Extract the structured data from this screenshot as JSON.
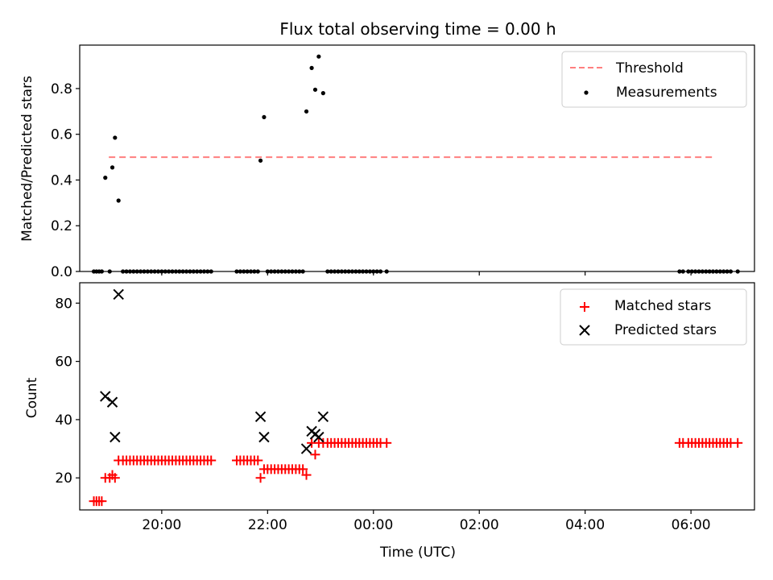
{
  "figure": {
    "title": "Flux total observing time = 0.00 h"
  },
  "chart_data": [
    {
      "type": "scatter",
      "ylabel": "Matched/Predicted stars",
      "xlabel": "",
      "xlim": [
        18.45,
        7.2
      ],
      "ylim": [
        0.0,
        0.99
      ],
      "yticks": [
        0.0,
        0.2,
        0.4,
        0.6,
        0.8
      ],
      "ytick_labels": [
        "0.0",
        "0.2",
        "0.4",
        "0.6",
        "0.8"
      ],
      "grid": false,
      "legend_position": "upper right",
      "threshold": {
        "name": "Threshold",
        "y": 0.5,
        "x_start": "19:00",
        "x_end": "06:25",
        "color": "#ff7f7f",
        "style": "dashed"
      },
      "series": [
        {
          "name": "Measurements",
          "color": "#000000",
          "marker": "dot",
          "points": [
            [
              "18:43",
              0.0
            ],
            [
              "18:46",
              0.0
            ],
            [
              "18:49",
              0.0
            ],
            [
              "18:52",
              0.0
            ],
            [
              "18:56",
              0.41
            ],
            [
              "19:01",
              0.0
            ],
            [
              "19:04",
              0.455
            ],
            [
              "19:07",
              0.585
            ],
            [
              "19:11",
              0.31
            ],
            [
              "19:16",
              0.0
            ],
            [
              "19:20",
              0.0
            ],
            [
              "19:24",
              0.0
            ],
            [
              "19:28",
              0.0
            ],
            [
              "19:32",
              0.0
            ],
            [
              "19:36",
              0.0
            ],
            [
              "19:40",
              0.0
            ],
            [
              "19:44",
              0.0
            ],
            [
              "19:48",
              0.0
            ],
            [
              "19:52",
              0.0
            ],
            [
              "19:56",
              0.0
            ],
            [
              "20:00",
              0.0
            ],
            [
              "20:04",
              0.0
            ],
            [
              "20:08",
              0.0
            ],
            [
              "20:12",
              0.0
            ],
            [
              "20:16",
              0.0
            ],
            [
              "20:20",
              0.0
            ],
            [
              "20:24",
              0.0
            ],
            [
              "20:28",
              0.0
            ],
            [
              "20:32",
              0.0
            ],
            [
              "20:36",
              0.0
            ],
            [
              "20:40",
              0.0
            ],
            [
              "20:44",
              0.0
            ],
            [
              "20:48",
              0.0
            ],
            [
              "20:52",
              0.0
            ],
            [
              "20:56",
              0.0
            ],
            [
              "21:25",
              0.0
            ],
            [
              "21:29",
              0.0
            ],
            [
              "21:33",
              0.0
            ],
            [
              "21:37",
              0.0
            ],
            [
              "21:41",
              0.0
            ],
            [
              "21:45",
              0.0
            ],
            [
              "21:49",
              0.0
            ],
            [
              "21:52",
              0.485
            ],
            [
              "21:56",
              0.675
            ],
            [
              "22:00",
              0.0
            ],
            [
              "22:04",
              0.0
            ],
            [
              "22:08",
              0.0
            ],
            [
              "22:12",
              0.0
            ],
            [
              "22:16",
              0.0
            ],
            [
              "22:20",
              0.0
            ],
            [
              "22:24",
              0.0
            ],
            [
              "22:28",
              0.0
            ],
            [
              "22:32",
              0.0
            ],
            [
              "22:36",
              0.0
            ],
            [
              "22:40",
              0.0
            ],
            [
              "22:44",
              0.7
            ],
            [
              "22:50",
              0.89
            ],
            [
              "22:54",
              0.795
            ],
            [
              "22:58",
              0.94
            ],
            [
              "23:03",
              0.78
            ],
            [
              "23:08",
              0.0
            ],
            [
              "23:12",
              0.0
            ],
            [
              "23:16",
              0.0
            ],
            [
              "23:20",
              0.0
            ],
            [
              "23:24",
              0.0
            ],
            [
              "23:28",
              0.0
            ],
            [
              "23:32",
              0.0
            ],
            [
              "23:36",
              0.0
            ],
            [
              "23:40",
              0.0
            ],
            [
              "23:44",
              0.0
            ],
            [
              "23:48",
              0.0
            ],
            [
              "23:52",
              0.0
            ],
            [
              "23:56",
              0.0
            ],
            [
              "00:00",
              0.0
            ],
            [
              "00:04",
              0.0
            ],
            [
              "00:08",
              0.0
            ],
            [
              "00:15",
              0.0
            ],
            [
              "05:47",
              0.0
            ],
            [
              "05:51",
              0.0
            ],
            [
              "05:57",
              0.0
            ],
            [
              "06:01",
              0.0
            ],
            [
              "06:05",
              0.0
            ],
            [
              "06:09",
              0.0
            ],
            [
              "06:13",
              0.0
            ],
            [
              "06:17",
              0.0
            ],
            [
              "06:21",
              0.0
            ],
            [
              "06:25",
              0.0
            ],
            [
              "06:29",
              0.0
            ],
            [
              "06:33",
              0.0
            ],
            [
              "06:37",
              0.0
            ],
            [
              "06:41",
              0.0
            ],
            [
              "06:45",
              0.0
            ],
            [
              "06:53",
              0.0
            ]
          ]
        }
      ]
    },
    {
      "type": "scatter",
      "ylabel": "Count",
      "xlabel": "Time (UTC)",
      "xlim": [
        18.45,
        7.2
      ],
      "ylim": [
        9,
        87
      ],
      "yticks": [
        20,
        40,
        60,
        80
      ],
      "ytick_labels": [
        "20",
        "40",
        "60",
        "80"
      ],
      "xticks": [
        "20:00",
        "22:00",
        "00:00",
        "02:00",
        "04:00",
        "06:00"
      ],
      "grid": false,
      "legend_position": "upper right",
      "series": [
        {
          "name": "Matched stars",
          "color": "#ff0000",
          "marker": "plus",
          "points": [
            [
              "18:43",
              12
            ],
            [
              "18:46",
              12
            ],
            [
              "18:49",
              12
            ],
            [
              "18:52",
              12
            ],
            [
              "18:56",
              20
            ],
            [
              "19:01",
              20
            ],
            [
              "19:04",
              21
            ],
            [
              "19:07",
              20
            ],
            [
              "19:11",
              26
            ],
            [
              "19:16",
              26
            ],
            [
              "19:20",
              26
            ],
            [
              "19:24",
              26
            ],
            [
              "19:28",
              26
            ],
            [
              "19:32",
              26
            ],
            [
              "19:36",
              26
            ],
            [
              "19:40",
              26
            ],
            [
              "19:44",
              26
            ],
            [
              "19:48",
              26
            ],
            [
              "19:52",
              26
            ],
            [
              "19:56",
              26
            ],
            [
              "20:00",
              26
            ],
            [
              "20:04",
              26
            ],
            [
              "20:08",
              26
            ],
            [
              "20:12",
              26
            ],
            [
              "20:16",
              26
            ],
            [
              "20:20",
              26
            ],
            [
              "20:24",
              26
            ],
            [
              "20:28",
              26
            ],
            [
              "20:32",
              26
            ],
            [
              "20:36",
              26
            ],
            [
              "20:40",
              26
            ],
            [
              "20:44",
              26
            ],
            [
              "20:48",
              26
            ],
            [
              "20:52",
              26
            ],
            [
              "20:56",
              26
            ],
            [
              "21:25",
              26
            ],
            [
              "21:29",
              26
            ],
            [
              "21:33",
              26
            ],
            [
              "21:37",
              26
            ],
            [
              "21:41",
              26
            ],
            [
              "21:45",
              26
            ],
            [
              "21:49",
              26
            ],
            [
              "21:52",
              20
            ],
            [
              "21:56",
              23
            ],
            [
              "22:00",
              23
            ],
            [
              "22:04",
              23
            ],
            [
              "22:08",
              23
            ],
            [
              "22:12",
              23
            ],
            [
              "22:16",
              23
            ],
            [
              "22:20",
              23
            ],
            [
              "22:24",
              23
            ],
            [
              "22:28",
              23
            ],
            [
              "22:32",
              23
            ],
            [
              "22:36",
              23
            ],
            [
              "22:40",
              23
            ],
            [
              "22:44",
              21
            ],
            [
              "22:50",
              32
            ],
            [
              "22:54",
              28
            ],
            [
              "22:58",
              32
            ],
            [
              "23:03",
              32
            ],
            [
              "23:08",
              32
            ],
            [
              "23:12",
              32
            ],
            [
              "23:16",
              32
            ],
            [
              "23:20",
              32
            ],
            [
              "23:24",
              32
            ],
            [
              "23:28",
              32
            ],
            [
              "23:32",
              32
            ],
            [
              "23:36",
              32
            ],
            [
              "23:40",
              32
            ],
            [
              "23:44",
              32
            ],
            [
              "23:48",
              32
            ],
            [
              "23:52",
              32
            ],
            [
              "23:56",
              32
            ],
            [
              "00:00",
              32
            ],
            [
              "00:04",
              32
            ],
            [
              "00:08",
              32
            ],
            [
              "00:15",
              32
            ],
            [
              "05:47",
              32
            ],
            [
              "05:51",
              32
            ],
            [
              "05:57",
              32
            ],
            [
              "06:01",
              32
            ],
            [
              "06:05",
              32
            ],
            [
              "06:09",
              32
            ],
            [
              "06:13",
              32
            ],
            [
              "06:17",
              32
            ],
            [
              "06:21",
              32
            ],
            [
              "06:25",
              32
            ],
            [
              "06:29",
              32
            ],
            [
              "06:33",
              32
            ],
            [
              "06:37",
              32
            ],
            [
              "06:41",
              32
            ],
            [
              "06:45",
              32
            ],
            [
              "06:53",
              32
            ]
          ]
        },
        {
          "name": "Predicted stars",
          "color": "#000000",
          "marker": "x",
          "points": [
            [
              "18:56",
              48
            ],
            [
              "19:04",
              46
            ],
            [
              "19:07",
              34
            ],
            [
              "19:11",
              83
            ],
            [
              "21:52",
              41
            ],
            [
              "21:56",
              34
            ],
            [
              "22:44",
              30
            ],
            [
              "22:50",
              36
            ],
            [
              "22:54",
              35
            ],
            [
              "22:58",
              34
            ],
            [
              "23:03",
              41
            ]
          ]
        }
      ]
    }
  ]
}
